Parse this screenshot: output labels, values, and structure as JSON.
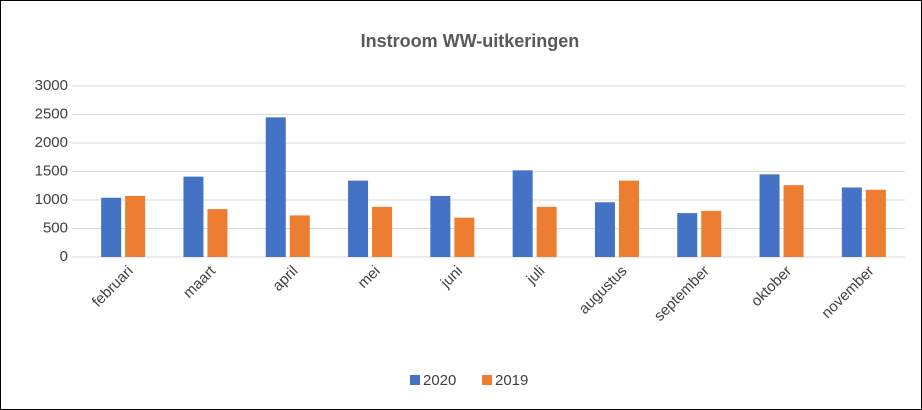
{
  "chart_data": {
    "type": "bar",
    "title": "Instroom WW-uitkeringen",
    "categories": [
      "februari",
      "maart",
      "april",
      "mei",
      "juni",
      "juli",
      "augustus",
      "september",
      "oktober",
      "november"
    ],
    "series": [
      {
        "name": "2020",
        "color": "#4472c4",
        "values": [
          1040,
          1410,
          2450,
          1340,
          1070,
          1520,
          960,
          770,
          1450,
          1220
        ]
      },
      {
        "name": "2019",
        "color": "#ed7d31",
        "values": [
          1070,
          840,
          730,
          880,
          690,
          880,
          1340,
          810,
          1260,
          1180
        ]
      }
    ],
    "ylim": [
      0,
      3000
    ],
    "yticks": [
      0,
      500,
      1000,
      1500,
      2000,
      2500,
      3000
    ],
    "grid": true,
    "legend": "bottom"
  }
}
